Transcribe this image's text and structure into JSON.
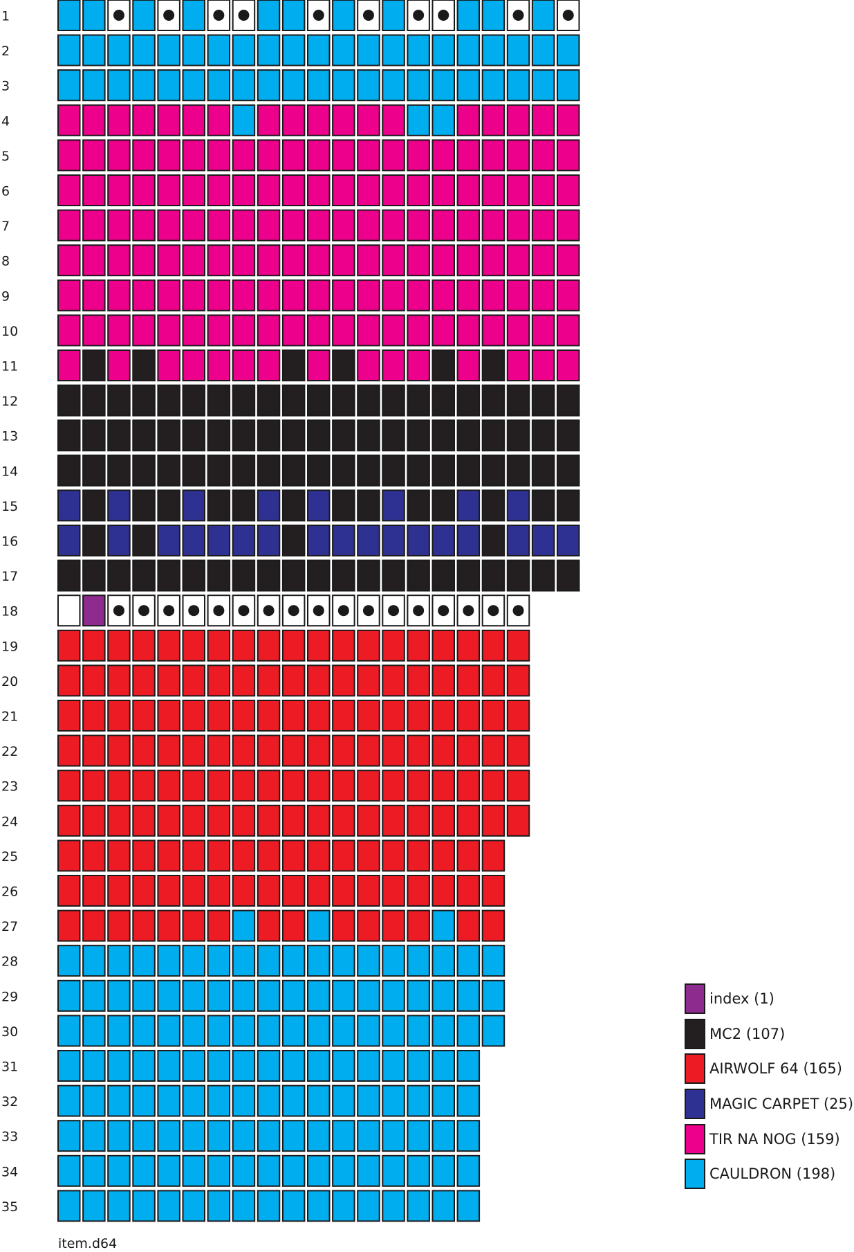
{
  "colors": {
    "index": "#8e2b8e",
    "mc2": "#231f20",
    "airwolf": "#ed1c24",
    "magic": "#2e3192",
    "tirnanog": "#ec008c",
    "cauldron": "#00aeef",
    "free": "#ffffff",
    "border": "#1a1a1a",
    "dot": "#1a1a1a"
  },
  "legend": [
    {
      "key": "index",
      "label": "index (1)"
    },
    {
      "key": "mc2",
      "label": "MC2 (107)"
    },
    {
      "key": "airwolf",
      "label": "AIRWOLF 64 (165)"
    },
    {
      "key": "magic",
      "label": "MAGIC CARPET (25)"
    },
    {
      "key": "tirnanog",
      "label": "TIR NA NOG (159)"
    },
    {
      "key": "cauldron",
      "label": "CAULDRON (198)"
    }
  ],
  "codes": {
    "C": "cauldron",
    "T": "tirnanog",
    "M": "mc2",
    "P": "magic",
    "A": "airwolf",
    "I": "index",
    "F": "free",
    "D": "free-used"
  },
  "tracks": [
    {
      "label": "1",
      "sectors": "CCDCDCDDCCDCDCDDCCDCD"
    },
    {
      "label": "2",
      "sectors": "CCCCCCCCCCCCCCCCCCCCC"
    },
    {
      "label": "3",
      "sectors": "CCCCCCCCCCCCCCCCCCCCC"
    },
    {
      "label": "4",
      "sectors": "TTTTTTTCTTTTTTCCTTTTT"
    },
    {
      "label": "5",
      "sectors": "TTTTTTTTTTTTTTTTTTTTT"
    },
    {
      "label": "6",
      "sectors": "TTTTTTTTTTTTTTTTTTTTT"
    },
    {
      "label": "7",
      "sectors": "TTTTTTTTTTTTTTTTTTTTT"
    },
    {
      "label": "8",
      "sectors": "TTTTTTTTTTTTTTTTTTTTT"
    },
    {
      "label": "9",
      "sectors": "TTTTTTTTTTTTTTTTTTTTT"
    },
    {
      "label": "10",
      "sectors": "TTTTTTTTTTTTTTTTTTTTT"
    },
    {
      "label": "11",
      "sectors": "TMTMTTTTTMTMTTTMTMTTT"
    },
    {
      "label": "12",
      "sectors": "MMMMMMMMMMMMMMMMMMMMM"
    },
    {
      "label": "13",
      "sectors": "MMMMMMMMMMMMMMMMMMMMM"
    },
    {
      "label": "14",
      "sectors": "MMMMMMMMMMMMMMMMMMMMM"
    },
    {
      "label": "15",
      "sectors": "PMPMMPMMPMPMMPMMPMPMM"
    },
    {
      "label": "16",
      "sectors": "PMPMPPPPPMPPPPPPPMPPP"
    },
    {
      "label": "17",
      "sectors": "MMMMMMMMMMMMMMMMMMMMM"
    },
    {
      "label": "18",
      "sectors": "FIDDDDDDDDDDDDDDDDD"
    },
    {
      "label": "19",
      "sectors": "AAAAAAAAAAAAAAAAAAA"
    },
    {
      "label": "20",
      "sectors": "AAAAAAAAAAAAAAAAAAA"
    },
    {
      "label": "21",
      "sectors": "AAAAAAAAAAAAAAAAAAA"
    },
    {
      "label": "22",
      "sectors": "AAAAAAAAAAAAAAAAAAA"
    },
    {
      "label": "23",
      "sectors": "AAAAAAAAAAAAAAAAAAA"
    },
    {
      "label": "24",
      "sectors": "AAAAAAAAAAAAAAAAAAA"
    },
    {
      "label": "25",
      "sectors": "AAAAAAAAAAAAAAAAAA"
    },
    {
      "label": "26",
      "sectors": "AAAAAAAAAAAAAAAAAA"
    },
    {
      "label": "27",
      "sectors": "AAAAAAACAACAAAACAA"
    },
    {
      "label": "28",
      "sectors": "CCCCCCCCCCCCCCCCCC"
    },
    {
      "label": "29",
      "sectors": "CCCCCCCCCCCCCCCCCC"
    },
    {
      "label": "30",
      "sectors": "CCCCCCCCCCCCCCCCCC"
    },
    {
      "label": "31",
      "sectors": "CCCCCCCCCCCCCCCCC"
    },
    {
      "label": "32",
      "sectors": "CCCCCCCCCCCCCCCCC"
    },
    {
      "label": "33",
      "sectors": "CCCCCCCCCCCCCCCCC"
    },
    {
      "label": "34",
      "sectors": "CCCCCCCCCCCCCCCCC"
    },
    {
      "label": "35",
      "sectors": "CCCCCCCCCCCCCCCCC"
    }
  ],
  "caption": "item.d64"
}
